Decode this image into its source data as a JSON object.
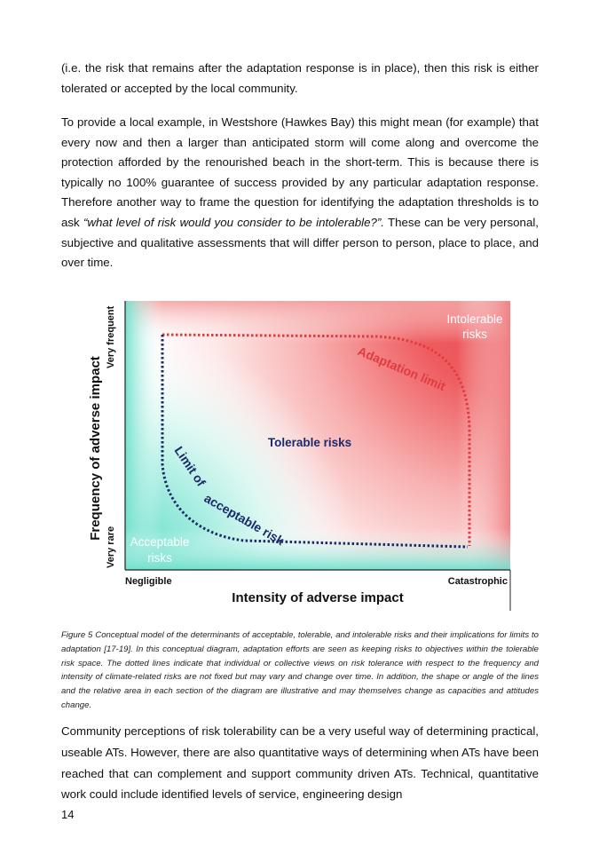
{
  "paragraphs": {
    "p1": "(i.e. the risk that remains after the adaptation response is in place), then this risk is either tolerated or accepted by the local community.",
    "p2_before": "To provide a local example, in Westshore (Hawkes Bay) this might mean (for example) that every now and then a larger than anticipated storm will come along and overcome the protection afforded by the renourished beach in the short-term. This is because there is typically no 100% guarantee of success provided by any particular adaptation response. Therefore another way to frame the question for identifying the adaptation thresholds is to ask ",
    "p2_quote": "“what level of risk would you consider to be intolerable?”.",
    "p2_after": " These can be very personal, subjective and qualitative assessments that will differ person to person, place to place, and over time.",
    "p3": "Community perceptions of risk tolerability can be a very useful way of determining practical, useable ATs. However, there are also quantitative ways of determining when ATs have been reached that can complement and support community driven ATs. Technical, quantitative work could include identified levels of service, engineering design"
  },
  "figure": {
    "y_axis_title": "Frequency of adverse impact",
    "x_axis_title": "Intensity of adverse impact",
    "y_top_label": "Very frequent",
    "y_bottom_label": "Very rare",
    "x_left_label": "Negligible",
    "x_right_label": "Catastrophic",
    "intolerable_line1": "Intolerable",
    "intolerable_line2": "risks",
    "acceptable_line1": "Acceptable",
    "acceptable_line2": "risks",
    "tolerable_label": "Tolerable risks",
    "adaptation_limit_label": "Adaptation limit",
    "acceptable_limit_label": "Limit of acceptable risk",
    "colors": {
      "intolerable": "#e8383d",
      "acceptable": "#4fd9c2",
      "adaptation_line": "#e23b3f",
      "acceptable_line": "#1b2a6b"
    }
  },
  "caption": "Figure 5 Conceptual model of the determinants of acceptable, tolerable, and intolerable risks and their implications for limits to adaptation [17-19]. In this conceptual diagram, adaptation efforts are seen as keeping risks to objectives within the tolerable risk space. The dotted lines indicate that individual or collective views on risk tolerance with respect to the frequency and intensity of climate-related risks are not fixed but may vary and change over time. In addition, the shape or angle of the lines and the relative area in each section of the diagram are illustrative and may themselves change as capacities and attitudes change.",
  "page_number": "14"
}
